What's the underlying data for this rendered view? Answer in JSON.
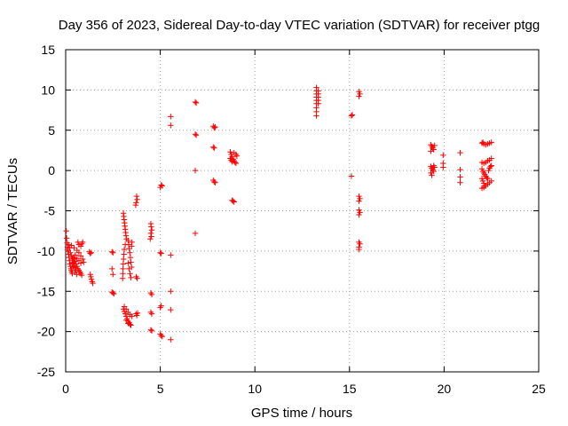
{
  "chart_data": {
    "type": "scatter",
    "title": "Day 356 of 2023, Sidereal Day-to-day VTEC variation (SDTVAR) for receiver ptgg",
    "xlabel": "GPS time / hours",
    "ylabel": "SDTVAR / TECUs",
    "xlim": [
      0,
      25
    ],
    "ylim": [
      -25,
      15
    ],
    "xticks": [
      0,
      5,
      10,
      15,
      20,
      25
    ],
    "yticks": [
      -25,
      -20,
      -15,
      -10,
      -5,
      0,
      5,
      10,
      15
    ],
    "grid": true,
    "marker": "+",
    "color": "#ff0000",
    "series": [
      {
        "name": "SDTVAR",
        "points": [
          [
            0.03,
            -7.5
          ],
          [
            0.05,
            -8.4
          ],
          [
            0.08,
            -9.0
          ],
          [
            0.1,
            -9.5
          ],
          [
            0.12,
            -10.0
          ],
          [
            0.15,
            -10.4
          ],
          [
            0.18,
            -10.8
          ],
          [
            0.2,
            -11.2
          ],
          [
            0.22,
            -11.6
          ],
          [
            0.25,
            -11.9
          ],
          [
            0.28,
            -12.2
          ],
          [
            0.3,
            -12.4
          ],
          [
            0.33,
            -12.6
          ],
          [
            0.35,
            -12.8
          ],
          [
            0.1,
            -9.8
          ],
          [
            0.15,
            -9.2
          ],
          [
            0.2,
            -9.6
          ],
          [
            0.25,
            -10.2
          ],
          [
            0.3,
            -10.6
          ],
          [
            0.35,
            -11.0
          ],
          [
            0.4,
            -11.4
          ],
          [
            0.45,
            -11.8
          ],
          [
            0.5,
            -12.1
          ],
          [
            0.55,
            -12.4
          ],
          [
            0.4,
            -10.8
          ],
          [
            0.45,
            -11.0
          ],
          [
            0.5,
            -11.3
          ],
          [
            0.55,
            -11.6
          ],
          [
            0.6,
            -11.9
          ],
          [
            0.65,
            -12.2
          ],
          [
            0.7,
            -12.4
          ],
          [
            0.75,
            -12.6
          ],
          [
            0.8,
            -12.8
          ],
          [
            0.85,
            -13.0
          ],
          [
            0.5,
            -10.5
          ],
          [
            0.6,
            -10.9
          ],
          [
            0.7,
            -11.2
          ],
          [
            0.8,
            -11.5
          ],
          [
            0.3,
            -9.3
          ],
          [
            0.45,
            -9.6
          ],
          [
            0.6,
            -9.9
          ],
          [
            0.7,
            -10.2
          ],
          [
            0.8,
            -9.4
          ],
          [
            0.85,
            -9.1
          ],
          [
            0.9,
            -8.9
          ],
          [
            0.8,
            -10.6
          ],
          [
            0.9,
            -11.0
          ],
          [
            0.95,
            -11.4
          ],
          [
            0.65,
            -8.9
          ],
          [
            0.7,
            -9.2
          ],
          [
            0.35,
            -11.5
          ],
          [
            0.42,
            -12.0
          ],
          [
            0.5,
            -12.6
          ],
          [
            0.58,
            -12.9
          ],
          [
            1.25,
            -10.1
          ],
          [
            1.3,
            -10.3
          ],
          [
            1.35,
            -10.2
          ],
          [
            1.3,
            -12.9
          ],
          [
            1.33,
            -13.2
          ],
          [
            1.36,
            -13.5
          ],
          [
            1.4,
            -13.8
          ],
          [
            1.43,
            -14.0
          ],
          [
            2.45,
            -10.1
          ],
          [
            2.5,
            -10.2
          ],
          [
            2.45,
            -12.2
          ],
          [
            2.5,
            -12.9
          ],
          [
            2.45,
            -15.1
          ],
          [
            2.5,
            -15.2
          ],
          [
            2.55,
            -15.3
          ],
          [
            3.05,
            -5.3
          ],
          [
            3.07,
            -5.7
          ],
          [
            3.09,
            -6.1
          ],
          [
            3.11,
            -6.5
          ],
          [
            3.13,
            -6.9
          ],
          [
            3.15,
            -7.3
          ],
          [
            3.17,
            -7.7
          ],
          [
            3.19,
            -8.1
          ],
          [
            3.21,
            -8.5
          ],
          [
            3.15,
            -9.2
          ],
          [
            3.1,
            -9.8
          ],
          [
            3.08,
            -10.4
          ],
          [
            3.06,
            -11.0
          ],
          [
            3.04,
            -11.6
          ],
          [
            3.03,
            -12.2
          ],
          [
            3.02,
            -12.8
          ],
          [
            3.01,
            -13.4
          ],
          [
            3.3,
            -8.7
          ],
          [
            3.33,
            -9.2
          ],
          [
            3.36,
            -9.7
          ],
          [
            3.39,
            -10.2
          ],
          [
            3.42,
            -10.8
          ],
          [
            3.45,
            -11.4
          ],
          [
            3.48,
            -12.0
          ],
          [
            3.3,
            -11.5
          ],
          [
            3.35,
            -12.2
          ],
          [
            3.4,
            -12.8
          ],
          [
            3.45,
            -13.3
          ],
          [
            3.5,
            -8.9
          ],
          [
            3.48,
            -9.4
          ],
          [
            3.05,
            -17.2
          ],
          [
            3.1,
            -17.5
          ],
          [
            3.15,
            -17.8
          ],
          [
            3.2,
            -18.1
          ],
          [
            3.25,
            -18.4
          ],
          [
            3.3,
            -18.7
          ],
          [
            3.35,
            -18.9
          ],
          [
            3.4,
            -19.1
          ],
          [
            3.45,
            -19.2
          ],
          [
            3.1,
            -16.9
          ],
          [
            3.2,
            -17.2
          ],
          [
            3.3,
            -17.6
          ],
          [
            3.4,
            -17.9
          ],
          [
            3.5,
            -18.1
          ],
          [
            3.3,
            -19.0
          ],
          [
            3.2,
            -18.6
          ],
          [
            3.75,
            -3.2
          ],
          [
            3.78,
            -3.6
          ],
          [
            3.72,
            -4.0
          ],
          [
            3.7,
            -4.3
          ],
          [
            3.73,
            -13.2
          ],
          [
            3.78,
            -13.4
          ],
          [
            3.72,
            -17.8
          ],
          [
            3.76,
            -18.0
          ],
          [
            3.8,
            -17.7
          ],
          [
            4.5,
            -6.6
          ],
          [
            4.52,
            -7.0
          ],
          [
            4.55,
            -7.4
          ],
          [
            4.5,
            -7.8
          ],
          [
            4.53,
            -8.2
          ],
          [
            4.47,
            -8.5
          ],
          [
            4.5,
            -15.2
          ],
          [
            4.55,
            -15.4
          ],
          [
            4.5,
            -17.6
          ],
          [
            4.55,
            -17.8
          ],
          [
            4.5,
            -19.8
          ],
          [
            4.55,
            -19.9
          ],
          [
            5.0,
            -2.1
          ],
          [
            5.05,
            -1.8
          ],
          [
            5.1,
            -1.9
          ],
          [
            5.0,
            -10.2
          ],
          [
            5.05,
            -10.3
          ],
          [
            5.0,
            -17.0
          ],
          [
            5.05,
            -16.8
          ],
          [
            5.0,
            -20.3
          ],
          [
            5.05,
            -20.5
          ],
          [
            5.1,
            -20.6
          ],
          [
            5.55,
            6.7
          ],
          [
            5.55,
            5.6
          ],
          [
            5.55,
            -10.5
          ],
          [
            5.55,
            -15.0
          ],
          [
            5.55,
            -17.3
          ],
          [
            5.55,
            -21.0
          ],
          [
            6.85,
            8.5
          ],
          [
            6.9,
            8.4
          ],
          [
            6.85,
            4.5
          ],
          [
            6.9,
            4.4
          ],
          [
            6.85,
            0.0
          ],
          [
            6.85,
            -7.8
          ],
          [
            7.8,
            5.5
          ],
          [
            7.85,
            5.3
          ],
          [
            7.9,
            5.4
          ],
          [
            7.8,
            2.9
          ],
          [
            7.85,
            2.8
          ],
          [
            7.8,
            -1.2
          ],
          [
            7.85,
            -1.4
          ],
          [
            7.9,
            -1.5
          ],
          [
            8.7,
            2.3
          ],
          [
            8.75,
            2.0
          ],
          [
            8.8,
            1.7
          ],
          [
            8.85,
            1.4
          ],
          [
            8.9,
            1.2
          ],
          [
            8.95,
            1.0
          ],
          [
            9.0,
            0.9
          ],
          [
            8.7,
            1.5
          ],
          [
            8.75,
            1.3
          ],
          [
            8.8,
            1.1
          ],
          [
            8.9,
            2.2
          ],
          [
            9.0,
            2.0
          ],
          [
            9.05,
            1.8
          ],
          [
            8.8,
            -3.7
          ],
          [
            8.85,
            -3.8
          ],
          [
            8.9,
            -3.9
          ],
          [
            13.25,
            10.3
          ],
          [
            13.25,
            9.9
          ],
          [
            13.25,
            9.5
          ],
          [
            13.25,
            9.1
          ],
          [
            13.25,
            8.7
          ],
          [
            13.25,
            8.3
          ],
          [
            13.35,
            9.9
          ],
          [
            13.35,
            9.5
          ],
          [
            13.35,
            9.1
          ],
          [
            13.35,
            8.7
          ],
          [
            13.35,
            8.3
          ],
          [
            13.25,
            7.8
          ],
          [
            13.25,
            7.3
          ],
          [
            13.25,
            6.8
          ],
          [
            15.1,
            6.8
          ],
          [
            15.15,
            6.9
          ],
          [
            15.1,
            -0.7
          ],
          [
            15.5,
            9.8
          ],
          [
            15.55,
            9.5
          ],
          [
            15.5,
            9.2
          ],
          [
            15.5,
            -3.2
          ],
          [
            15.55,
            -3.5
          ],
          [
            15.5,
            -3.8
          ],
          [
            15.5,
            -4.9
          ],
          [
            15.55,
            -5.2
          ],
          [
            15.5,
            -5.5
          ],
          [
            15.5,
            -8.9
          ],
          [
            15.55,
            -9.1
          ],
          [
            15.5,
            -9.5
          ],
          [
            15.5,
            -9.8
          ],
          [
            19.3,
            3.2
          ],
          [
            19.35,
            3.0
          ],
          [
            19.4,
            2.8
          ],
          [
            19.45,
            2.6
          ],
          [
            19.3,
            2.4
          ],
          [
            19.5,
            3.1
          ],
          [
            19.3,
            0.5
          ],
          [
            19.35,
            0.3
          ],
          [
            19.4,
            0.1
          ],
          [
            19.45,
            -0.1
          ],
          [
            19.3,
            -0.3
          ],
          [
            19.35,
            -0.6
          ],
          [
            19.5,
            0.4
          ],
          [
            19.45,
            0.6
          ],
          [
            19.95,
            1.9
          ],
          [
            19.95,
            0.9
          ],
          [
            19.95,
            0.4
          ],
          [
            20.85,
            2.2
          ],
          [
            20.85,
            0.1
          ],
          [
            20.85,
            -0.8
          ],
          [
            20.85,
            -1.5
          ],
          [
            22.0,
            3.4
          ],
          [
            22.1,
            3.3
          ],
          [
            22.2,
            3.2
          ],
          [
            22.3,
            3.3
          ],
          [
            22.4,
            3.4
          ],
          [
            22.5,
            3.5
          ],
          [
            22.05,
            3.5
          ],
          [
            22.0,
            1.0
          ],
          [
            22.1,
            0.9
          ],
          [
            22.2,
            1.0
          ],
          [
            22.3,
            1.2
          ],
          [
            22.4,
            1.3
          ],
          [
            22.5,
            1.5
          ],
          [
            22.0,
            0.2
          ],
          [
            22.05,
            -0.1
          ],
          [
            22.1,
            -0.3
          ],
          [
            22.15,
            -0.5
          ],
          [
            22.2,
            -0.7
          ],
          [
            22.25,
            -0.9
          ],
          [
            22.3,
            -1.0
          ],
          [
            22.35,
            0.0
          ],
          [
            22.4,
            0.3
          ],
          [
            22.45,
            0.5
          ],
          [
            22.5,
            0.6
          ],
          [
            22.0,
            -1.0
          ],
          [
            22.05,
            -1.3
          ],
          [
            22.1,
            -1.6
          ],
          [
            22.15,
            -1.9
          ],
          [
            22.0,
            -2.2
          ],
          [
            22.1,
            -2.1
          ],
          [
            22.2,
            -1.9
          ],
          [
            22.3,
            -1.7
          ],
          [
            22.4,
            -1.5
          ],
          [
            22.5,
            -1.3
          ]
        ]
      }
    ]
  }
}
